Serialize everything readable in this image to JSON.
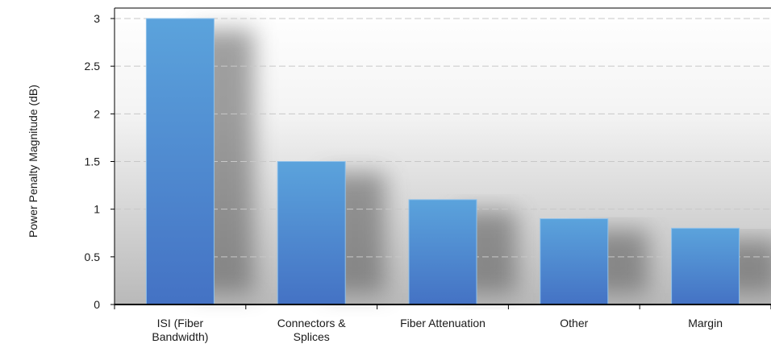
{
  "chart_data": {
    "type": "bar",
    "title": "",
    "xlabel": "",
    "ylabel": "Power Penalty Magnitude (dB)",
    "categories": [
      [
        "ISI (Fiber",
        "Bandwidth)"
      ],
      [
        "Connectors &",
        "Splices"
      ],
      [
        "Fiber Attenuation"
      ],
      [
        "Other"
      ],
      [
        "Margin"
      ]
    ],
    "values": [
      3.0,
      1.5,
      1.1,
      0.9,
      0.8
    ],
    "ylim": [
      0,
      3
    ],
    "yticks": [
      "0",
      "0.5",
      "1",
      "1.5",
      "2",
      "2.5",
      "3"
    ],
    "grid": true,
    "legend": "none",
    "colors": {
      "bar_top": "#5ba3dc",
      "bar_bottom": "#4472c4",
      "gridline": "#c8c8c8",
      "axis": "#000000"
    }
  }
}
